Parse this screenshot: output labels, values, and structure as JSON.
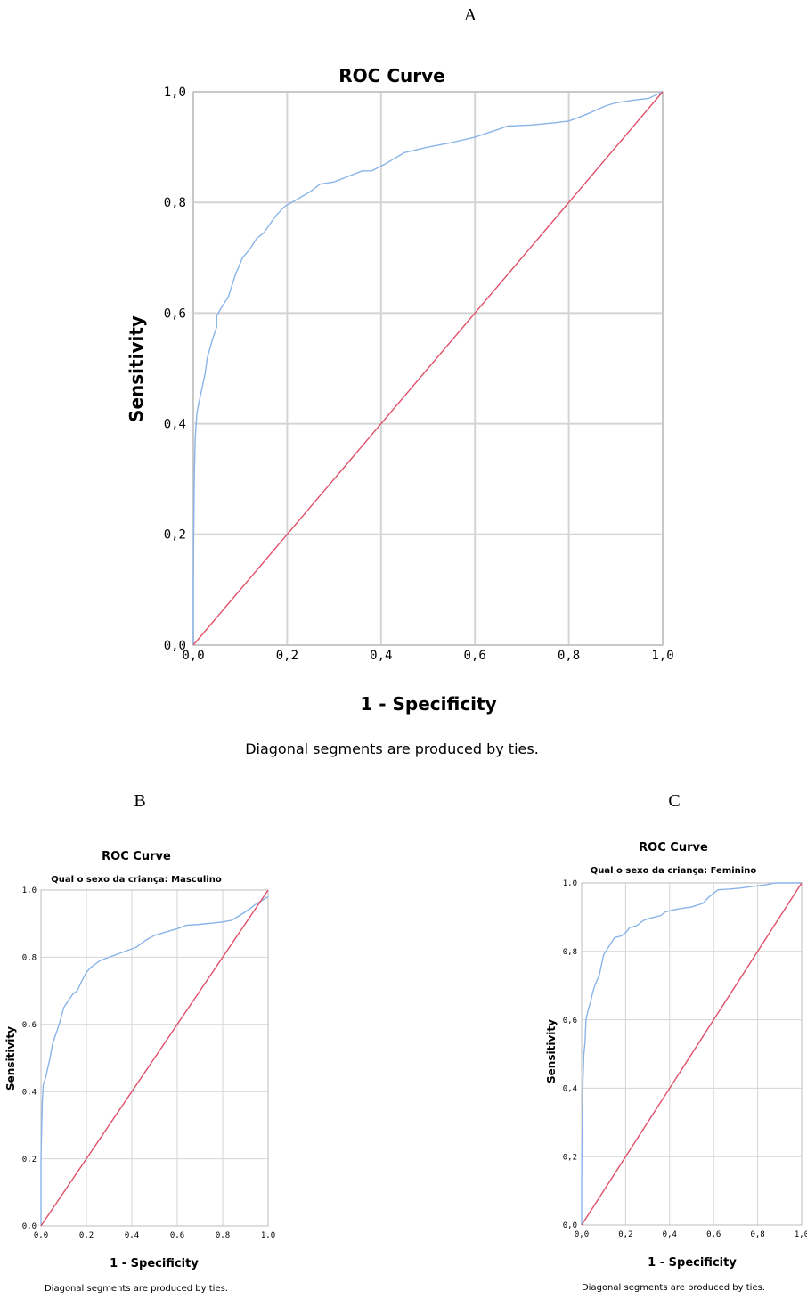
{
  "panels": [
    {
      "letter": "A"
    },
    {
      "letter": "B"
    },
    {
      "letter": "C"
    }
  ],
  "chart_data": [
    {
      "type": "line",
      "title": "ROC Curve",
      "subtitle": "",
      "xlabel": "1 - Specificity",
      "ylabel": "Sensitivity",
      "footnote": "Diagonal segments are produced by ties.",
      "xlim": [
        0,
        1
      ],
      "ylim": [
        0,
        1
      ],
      "xticks": [
        "0,0",
        "0,2",
        "0,4",
        "0,6",
        "0,8",
        "1,0"
      ],
      "yticks": [
        "0,0",
        "0,2",
        "0,4",
        "0,6",
        "0,8",
        "1,0"
      ],
      "grid": true,
      "line_colors": {
        "roc": "#8ab4e8",
        "reference": "#e0506a"
      },
      "series": [
        {
          "x": [
            0,
            0,
            0.002,
            0.004,
            0.006,
            0.008,
            0.01,
            0.015,
            0.02,
            0.025,
            0.03,
            0.04,
            0.05,
            0.05,
            0.06,
            0.075,
            0.09,
            0.105,
            0.12,
            0.135,
            0.15,
            0.175,
            0.195,
            0.22,
            0.25,
            0.27,
            0.3,
            0.33,
            0.36,
            0.38,
            0.41,
            0.45,
            0.5,
            0.55,
            0.6,
            0.65,
            0.67,
            0.72,
            0.77,
            0.8,
            0.84,
            0.88,
            0.9,
            0.94,
            0.97,
            1.0
          ],
          "y": [
            0,
            0.12,
            0.3,
            0.37,
            0.4,
            0.42,
            0.43,
            0.45,
            0.47,
            0.49,
            0.52,
            0.55,
            0.575,
            0.595,
            0.61,
            0.63,
            0.67,
            0.7,
            0.715,
            0.735,
            0.745,
            0.775,
            0.793,
            0.805,
            0.82,
            0.833,
            0.837,
            0.847,
            0.857,
            0.857,
            0.87,
            0.89,
            0.9,
            0.908,
            0.918,
            0.932,
            0.938,
            0.94,
            0.944,
            0.947,
            0.96,
            0.975,
            0.98,
            0.985,
            0.988,
            1.0
          ]
        },
        {
          "x": [
            0,
            1
          ],
          "y": [
            0,
            1
          ]
        }
      ]
    },
    {
      "type": "line",
      "title": "ROC Curve",
      "subtitle": "Qual o sexo da criança: Masculino",
      "xlabel": "1 - Specificity",
      "ylabel": "Sensitivity",
      "footnote": "Diagonal segments are produced by ties.",
      "xlim": [
        0,
        1
      ],
      "ylim": [
        0,
        1
      ],
      "xticks": [
        "0,0",
        "0,2",
        "0,4",
        "0,6",
        "0,8",
        "1,0"
      ],
      "yticks": [
        "0,0",
        "0,2",
        "0,4",
        "0,6",
        "0,8",
        "1,0"
      ],
      "grid": true,
      "line_colors": {
        "roc": "#8ab4e8",
        "reference": "#e0506a"
      },
      "series": [
        {
          "x": [
            0,
            0,
            0.003,
            0.006,
            0.01,
            0.02,
            0.03,
            0.04,
            0.05,
            0.06,
            0.07,
            0.08,
            0.1,
            0.12,
            0.14,
            0.16,
            0.18,
            0.2,
            0.22,
            0.26,
            0.3,
            0.34,
            0.38,
            0.42,
            0.46,
            0.5,
            0.55,
            0.6,
            0.64,
            0.7,
            0.76,
            0.8,
            0.84,
            0.9,
            0.95,
            1.0
          ],
          "y": [
            0,
            0.2,
            0.3,
            0.37,
            0.42,
            0.44,
            0.47,
            0.5,
            0.54,
            0.56,
            0.58,
            0.6,
            0.65,
            0.67,
            0.69,
            0.7,
            0.73,
            0.755,
            0.77,
            0.79,
            0.8,
            0.81,
            0.82,
            0.83,
            0.85,
            0.865,
            0.875,
            0.885,
            0.895,
            0.898,
            0.902,
            0.905,
            0.91,
            0.935,
            0.96,
            0.98
          ]
        },
        {
          "x": [
            0,
            1
          ],
          "y": [
            0,
            1
          ]
        }
      ]
    },
    {
      "type": "line",
      "title": "ROC Curve",
      "subtitle": "Qual o sexo da criança: Feminino",
      "xlabel": "1 - Specificity",
      "ylabel": "Sensitivity",
      "footnote": "Diagonal segments are produced by ties.",
      "xlim": [
        0,
        1
      ],
      "ylim": [
        0,
        1
      ],
      "xticks": [
        "0,0",
        "0,2",
        "0,4",
        "0,6",
        "0,8",
        "1,0"
      ],
      "yticks": [
        "0,0",
        "0,2",
        "0,4",
        "0,6",
        "0,8",
        "1,0"
      ],
      "grid": true,
      "line_colors": {
        "roc": "#8ab4e8",
        "reference": "#e0506a"
      },
      "series": [
        {
          "x": [
            0,
            0,
            0.003,
            0.006,
            0.01,
            0.015,
            0.02,
            0.03,
            0.04,
            0.05,
            0.06,
            0.08,
            0.1,
            0.12,
            0.15,
            0.18,
            0.2,
            0.22,
            0.25,
            0.28,
            0.3,
            0.33,
            0.36,
            0.38,
            0.41,
            0.45,
            0.5,
            0.55,
            0.58,
            0.62,
            0.67,
            0.72,
            0.78,
            0.84,
            0.88,
            1.0
          ],
          "y": [
            0,
            0.13,
            0.3,
            0.42,
            0.5,
            0.53,
            0.6,
            0.63,
            0.65,
            0.68,
            0.7,
            0.73,
            0.79,
            0.81,
            0.84,
            0.845,
            0.855,
            0.87,
            0.875,
            0.89,
            0.895,
            0.9,
            0.905,
            0.915,
            0.92,
            0.925,
            0.93,
            0.94,
            0.96,
            0.98,
            0.982,
            0.985,
            0.99,
            0.995,
            1.0,
            1.0
          ]
        },
        {
          "x": [
            0,
            1
          ],
          "y": [
            0,
            1
          ]
        }
      ]
    }
  ]
}
